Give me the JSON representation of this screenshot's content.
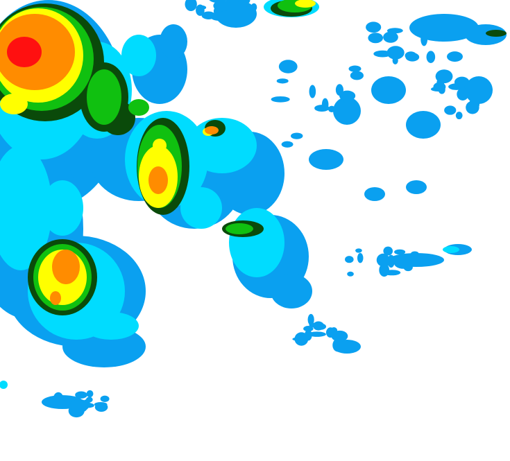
{
  "map": {
    "background": "#ffffff",
    "intensity_colors": {
      "light_blue": "#0aa0f0",
      "cyan": "#00dcff",
      "dark_green": "#0a4a0a",
      "green": "#10c010",
      "yellow": "#ffff00",
      "orange": "#ff8c00",
      "red": "#ff1010"
    }
  }
}
